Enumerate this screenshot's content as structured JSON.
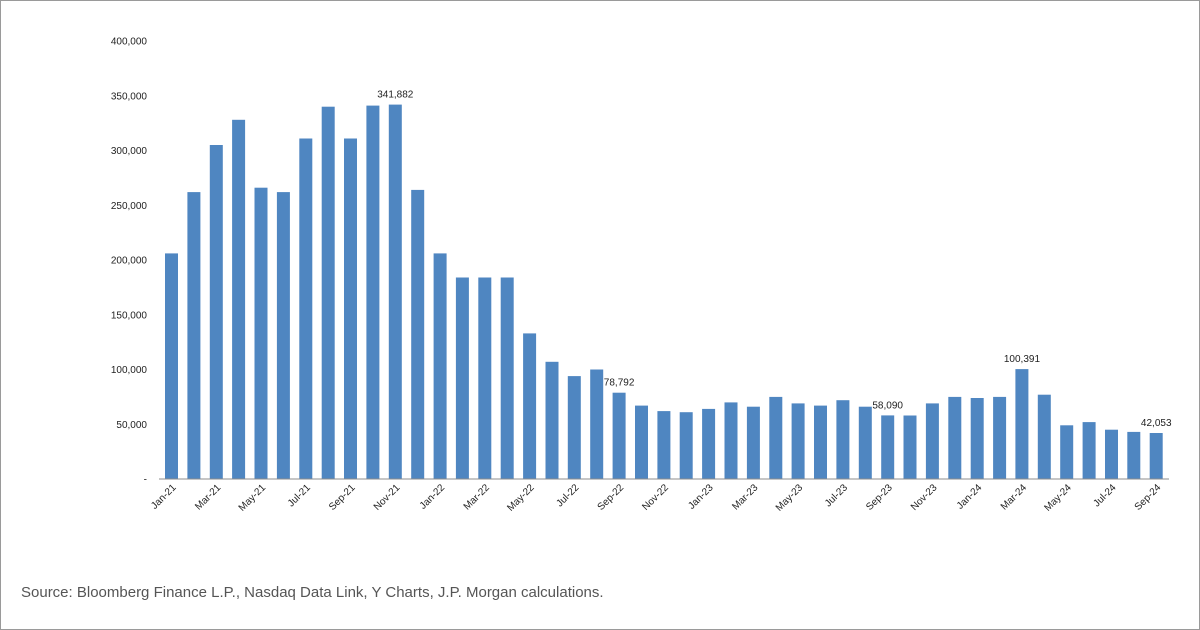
{
  "colors": {
    "bar": "#4f86c1",
    "axis": "#8c8c8c",
    "text": "#222222",
    "source": "#555555"
  },
  "source_note": "Source: Bloomberg Finance L.P., Nasdaq Data Link, Y Charts, J.P. Morgan calculations.",
  "chart_data": {
    "type": "bar",
    "title": "",
    "xlabel": "",
    "ylabel": "",
    "ylim": [
      0,
      400000
    ],
    "yticks": [
      0,
      50000,
      100000,
      150000,
      200000,
      250000,
      300000,
      350000,
      400000
    ],
    "ytick_labels": [
      "-",
      "50,000",
      "100,000",
      "150,000",
      "200,000",
      "250,000",
      "300,000",
      "350,000",
      "400,000"
    ],
    "grid": false,
    "legend": false,
    "categories": [
      "Jan-21",
      "Feb-21",
      "Mar-21",
      "Apr-21",
      "May-21",
      "Jun-21",
      "Jul-21",
      "Aug-21",
      "Sep-21",
      "Oct-21",
      "Nov-21",
      "Dec-21",
      "Jan-22",
      "Feb-22",
      "Mar-22",
      "Apr-22",
      "May-22",
      "Jun-22",
      "Jul-22",
      "Aug-22",
      "Sep-22",
      "Oct-22",
      "Nov-22",
      "Dec-22",
      "Jan-23",
      "Feb-23",
      "Mar-23",
      "Apr-23",
      "May-23",
      "Jun-23",
      "Jul-23",
      "Aug-23",
      "Sep-23",
      "Oct-23",
      "Nov-23",
      "Dec-23",
      "Jan-24",
      "Feb-24",
      "Mar-24",
      "Apr-24",
      "May-24",
      "Jun-24",
      "Jul-24",
      "Aug-24",
      "Sep-24"
    ],
    "x_tick_labels": [
      "Jan-21",
      "Mar-21",
      "May-21",
      "Jul-21",
      "Sep-21",
      "Nov-21",
      "Jan-22",
      "Mar-22",
      "May-22",
      "Jul-22",
      "Sep-22",
      "Nov-22",
      "Jan-23",
      "Mar-23",
      "May-23",
      "Jul-23",
      "Sep-23",
      "Nov-23",
      "Jan-24",
      "Mar-24",
      "May-24",
      "Jul-24",
      "Sep-24"
    ],
    "values": [
      206000,
      262000,
      305000,
      328000,
      266000,
      262000,
      311000,
      340000,
      311000,
      341000,
      341882,
      264000,
      206000,
      184000,
      184000,
      184000,
      133000,
      107000,
      94000,
      100000,
      78792,
      67000,
      62000,
      61000,
      64000,
      70000,
      66000,
      75000,
      69000,
      67000,
      72000,
      66000,
      58090,
      58000,
      69000,
      75000,
      74000,
      75000,
      100391,
      77000,
      49000,
      52000,
      45000,
      43000,
      42053
    ],
    "data_labels": [
      {
        "index": 10,
        "text": "341,882"
      },
      {
        "index": 20,
        "text": "78,792"
      },
      {
        "index": 32,
        "text": "58,090"
      },
      {
        "index": 38,
        "text": "100,391"
      },
      {
        "index": 44,
        "text": "42,053"
      }
    ]
  }
}
